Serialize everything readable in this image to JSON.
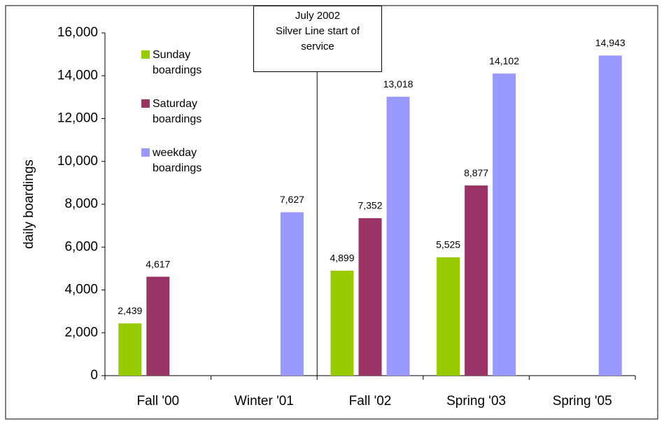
{
  "chart_data": {
    "type": "bar",
    "y_label": "daily boardings",
    "categories": [
      "Fall '00",
      "Winter '01",
      "Fall '02",
      "Spring '03",
      "Spring '05"
    ],
    "series": [
      {
        "name": "Sunday boardings",
        "color": "#99cc00",
        "values": [
          2439,
          null,
          4899,
          5525,
          null
        ],
        "value_labels": [
          "2,439",
          null,
          "4,899",
          "5,525",
          null
        ]
      },
      {
        "name": "Saturday boardings",
        "color": "#993366",
        "values": [
          4617,
          null,
          7352,
          8877,
          null
        ],
        "value_labels": [
          "4,617",
          null,
          "7,352",
          "8,877",
          null
        ]
      },
      {
        "name": "weekday boardings",
        "color": "#9999ff",
        "values": [
          null,
          7627,
          13018,
          14102,
          14943
        ],
        "value_labels": [
          null,
          "7,627",
          "13,018",
          "14,102",
          "14,943"
        ]
      }
    ],
    "ylim": [
      0,
      16000
    ],
    "yticks": [
      0,
      {
        "value": 2000,
        "label": "2,000"
      },
      {
        "value": 4000,
        "label": "4,000"
      },
      {
        "value": 6000,
        "label": "6,000"
      },
      {
        "value": 8000,
        "label": "8,000"
      },
      {
        "value": 10000,
        "label": "10,000"
      },
      {
        "value": 12000,
        "label": "12,000"
      },
      {
        "value": 14000,
        "label": "14,000"
      },
      {
        "value": 16000,
        "label": "16,000"
      }
    ],
    "annotation": [
      "July 2002",
      "Silver Line start of",
      "service"
    ],
    "legend": "upper left",
    "grid": false
  }
}
